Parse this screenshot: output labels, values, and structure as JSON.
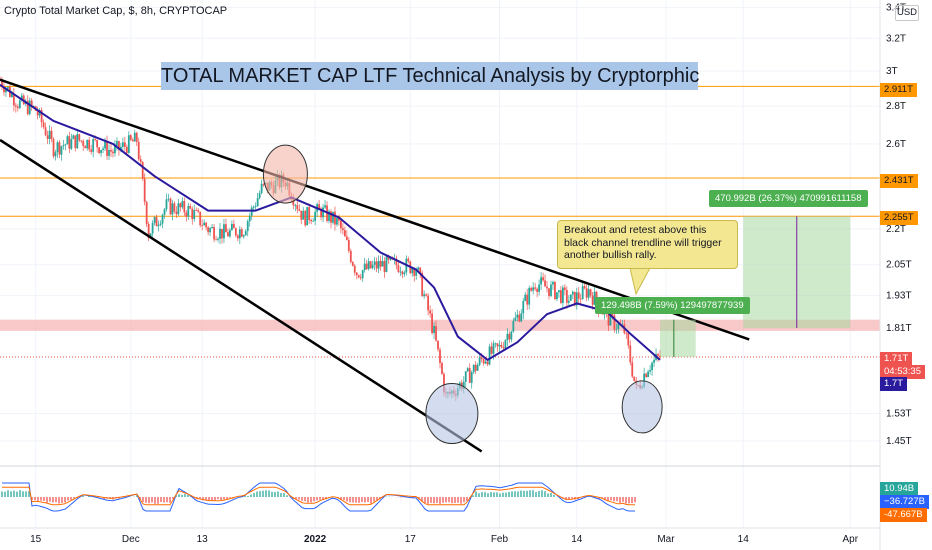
{
  "header": {
    "symbol": "Crypto Total Market Cap, $, 8h, CRYPTOCAP"
  },
  "title_box": "TOTAL MARKET CAP LTF Technical Analysis by Cryptorphic",
  "callout": "Breakout and retest above this black channel trendline will trigger another bullish rally.",
  "measure_top": "470.992B (26.37%) 470991611158",
  "measure_bottom": "129.498B (7.59%) 129497877939",
  "price_axis": {
    "unit_button": "USD",
    "ticks": [
      "3.4T",
      "3.2T",
      "3T",
      "2.8T",
      "2.6T",
      "2.2T",
      "2.05T",
      "1.93T",
      "1.81T",
      "1.53T",
      "1.45T"
    ],
    "level_labels": [
      "2.911T",
      "2.431T",
      "2.255T"
    ],
    "current_price": "1.71T",
    "countdown": "04:53:35",
    "ma_value": "1.7T"
  },
  "time_axis": {
    "ticks": [
      "15",
      "Dec",
      "13",
      "2022",
      "17",
      "Feb",
      "14",
      "Mar",
      "14",
      "Apr"
    ]
  },
  "indicator_axis": {
    "values": [
      "10.94B",
      "−36.727B",
      "-47.667B"
    ]
  },
  "colors": {
    "up": "#26a69a",
    "down": "#ef5350",
    "ma": "#2a1a9e",
    "level": "#ff9800",
    "zone": "#f5b7b5",
    "target": "#a7d7a0",
    "macd": "#2962ff",
    "signal": "#ff6d00"
  },
  "chart_data": {
    "type": "candlestick",
    "title": "TOTAL MARKET CAP LTF Technical Analysis by Cryptorphic",
    "x_range": [
      "Nov 9, 2021",
      "Apr 6, 2022"
    ],
    "y_range": [
      1.38,
      3.45
    ],
    "y_scale": "log",
    "close_path": [
      [
        "2021-11-09",
        2.95
      ],
      [
        "2021-11-12",
        2.82
      ],
      [
        "2021-11-15",
        2.78
      ],
      [
        "2021-11-18",
        2.58
      ],
      [
        "2021-11-22",
        2.62
      ],
      [
        "2021-11-25",
        2.6
      ],
      [
        "2021-11-28",
        2.56
      ],
      [
        "2021-12-02",
        2.62
      ],
      [
        "2021-12-04",
        2.18
      ],
      [
        "2021-12-07",
        2.3
      ],
      [
        "2021-12-11",
        2.28
      ],
      [
        "2021-12-14",
        2.2
      ],
      [
        "2021-12-17",
        2.18
      ],
      [
        "2021-12-20",
        2.2
      ],
      [
        "2021-12-23",
        2.38
      ],
      [
        "2021-12-27",
        2.42
      ],
      [
        "2021-12-30",
        2.25
      ],
      [
        "2022-01-02",
        2.28
      ],
      [
        "2022-01-05",
        2.22
      ],
      [
        "2022-01-08",
        2.02
      ],
      [
        "2022-01-12",
        2.05
      ],
      [
        "2022-01-15",
        2.05
      ],
      [
        "2022-01-18",
        2.04
      ],
      [
        "2022-01-21",
        1.79
      ],
      [
        "2022-01-23",
        1.58
      ],
      [
        "2022-01-26",
        1.63
      ],
      [
        "2022-01-29",
        1.7
      ],
      [
        "2022-02-01",
        1.74
      ],
      [
        "2022-02-04",
        1.85
      ],
      [
        "2022-02-07",
        1.98
      ],
      [
        "2022-02-10",
        1.95
      ],
      [
        "2022-02-13",
        1.91
      ],
      [
        "2022-02-16",
        1.95
      ],
      [
        "2022-02-19",
        1.85
      ],
      [
        "2022-02-22",
        1.8
      ],
      [
        "2022-02-24",
        1.6
      ],
      [
        "2022-02-26",
        1.68
      ],
      [
        "2022-02-28",
        1.71
      ]
    ],
    "moving_average_path": [
      [
        "2021-11-09",
        2.92
      ],
      [
        "2021-11-18",
        2.72
      ],
      [
        "2021-11-28",
        2.6
      ],
      [
        "2021-12-05",
        2.44
      ],
      [
        "2021-12-14",
        2.28
      ],
      [
        "2021-12-22",
        2.28
      ],
      [
        "2021-12-28",
        2.34
      ],
      [
        "2022-01-05",
        2.25
      ],
      [
        "2022-01-12",
        2.1
      ],
      [
        "2022-01-18",
        2.03
      ],
      [
        "2022-01-21",
        1.96
      ],
      [
        "2022-01-25",
        1.78
      ],
      [
        "2022-01-30",
        1.7
      ],
      [
        "2022-02-04",
        1.76
      ],
      [
        "2022-02-09",
        1.86
      ],
      [
        "2022-02-14",
        1.9
      ],
      [
        "2022-02-19",
        1.87
      ],
      [
        "2022-02-23",
        1.79
      ],
      [
        "2022-02-28",
        1.7
      ]
    ],
    "horizontal_levels": [
      2.911,
      2.431,
      2.255
    ],
    "resistance_zone": [
      1.8,
      1.84
    ],
    "trendlines": [
      {
        "from": [
          "2021-11-09",
          2.95
        ],
        "to": [
          "2022-03-15",
          1.77
        ]
      },
      {
        "from": [
          "2021-11-09",
          2.62
        ],
        "to": [
          "2022-01-29",
          1.42
        ]
      }
    ],
    "highlight_circles": [
      {
        "center": [
          "2021-12-27",
          2.45
        ]
      },
      {
        "center": [
          "2022-01-24",
          1.53
        ]
      },
      {
        "center": [
          "2022-02-25",
          1.55
        ]
      }
    ],
    "projection_targets": [
      {
        "from": 1.81,
        "to": 2.255,
        "change": "470.992B (26.37%)"
      },
      {
        "from": 1.71,
        "to": 1.84,
        "change": "129.498B (7.59%)"
      }
    ]
  }
}
